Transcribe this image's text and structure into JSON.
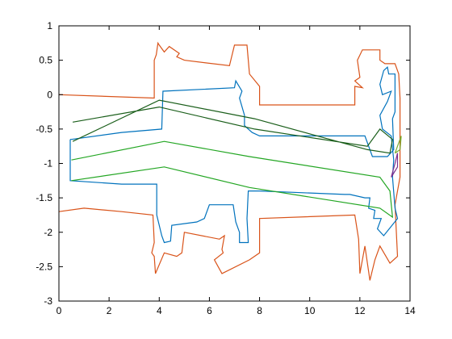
{
  "chart_data": {
    "type": "line",
    "title": "",
    "xlabel": "",
    "ylabel": "",
    "xlim": [
      0,
      14
    ],
    "ylim": [
      -3,
      1
    ],
    "xticks": [
      0,
      2,
      4,
      6,
      8,
      10,
      12,
      14
    ],
    "yticks": [
      1,
      0.5,
      0,
      -0.5,
      -1,
      -1.5,
      -2,
      -2.5,
      -3
    ],
    "xtick_labels": [
      "0",
      "2",
      "4",
      "6",
      "8",
      "10",
      "12",
      "14"
    ],
    "ytick_labels": [
      "1",
      "0.5",
      "0",
      "-0.5",
      "-1",
      "-1.5",
      "-2",
      "-2.5",
      "-3"
    ],
    "grid": false,
    "series": [
      {
        "color": "#d95319",
        "points": [
          [
            0,
            0
          ],
          [
            3.8,
            -0.05
          ],
          [
            3.8,
            0.5
          ],
          [
            3.88,
            0.58
          ],
          [
            3.95,
            0.75
          ],
          [
            4.0,
            0.72
          ],
          [
            4.2,
            0.62
          ],
          [
            4.4,
            0.7
          ],
          [
            4.8,
            0.6
          ],
          [
            4.7,
            0.55
          ],
          [
            5.0,
            0.5
          ],
          [
            6.8,
            0.42
          ],
          [
            7.0,
            0.72
          ],
          [
            7.5,
            0.72
          ],
          [
            7.6,
            0.3
          ],
          [
            8.0,
            0.12
          ],
          [
            8.0,
            -0.15
          ],
          [
            11.8,
            -0.15
          ],
          [
            11.8,
            0.12
          ],
          [
            12.1,
            0.1
          ],
          [
            11.8,
            0.2
          ],
          [
            12.0,
            0.25
          ],
          [
            11.9,
            0.5
          ],
          [
            12.1,
            0.65
          ],
          [
            12.8,
            0.65
          ],
          [
            12.8,
            0.5
          ],
          [
            13.0,
            0.45
          ],
          [
            13.4,
            0.45
          ],
          [
            13.55,
            0.3
          ],
          [
            13.6,
            -0.05
          ],
          [
            13.6,
            -1.2
          ],
          [
            13.4,
            -1.6
          ],
          [
            13.5,
            -2.35
          ],
          [
            13.2,
            -2.45
          ],
          [
            12.8,
            -2.2
          ],
          [
            12.6,
            -2.4
          ],
          [
            12.4,
            -2.7
          ],
          [
            12.2,
            -2.2
          ],
          [
            12.0,
            -2.6
          ],
          [
            11.95,
            -2.1
          ],
          [
            11.8,
            -1.75
          ],
          [
            8.0,
            -1.8
          ],
          [
            8.0,
            -2.3
          ],
          [
            7.6,
            -2.4
          ],
          [
            6.5,
            -2.6
          ],
          [
            6.2,
            -2.4
          ],
          [
            6.55,
            -2.3
          ],
          [
            6.5,
            -2.25
          ],
          [
            6.6,
            -2.05
          ],
          [
            6.4,
            -2.1
          ],
          [
            5.0,
            -2.0
          ],
          [
            4.9,
            -2.3
          ],
          [
            4.7,
            -2.35
          ],
          [
            4.2,
            -2.3
          ],
          [
            3.85,
            -2.6
          ],
          [
            3.8,
            -2.35
          ],
          [
            3.7,
            -2.3
          ],
          [
            3.8,
            -2.15
          ],
          [
            3.75,
            -1.75
          ],
          [
            2.5,
            -1.7
          ],
          [
            1.0,
            -1.65
          ],
          [
            0,
            -1.7
          ]
        ]
      },
      {
        "color": "#0072bd",
        "points": [
          [
            0.45,
            -0.65
          ],
          [
            0.45,
            -1.25
          ],
          [
            2.5,
            -1.3
          ],
          [
            3.9,
            -1.3
          ],
          [
            3.9,
            -1.75
          ],
          [
            4.1,
            -2.05
          ],
          [
            4.2,
            -2.15
          ],
          [
            4.45,
            -2.13
          ],
          [
            4.5,
            -1.9
          ],
          [
            5.5,
            -1.85
          ],
          [
            5.8,
            -1.8
          ],
          [
            6.0,
            -1.6
          ],
          [
            6.95,
            -1.6
          ],
          [
            7.05,
            -1.85
          ],
          [
            7.2,
            -2.0
          ],
          [
            7.2,
            -2.15
          ],
          [
            7.55,
            -2.15
          ],
          [
            7.5,
            -1.8
          ],
          [
            7.55,
            -1.4
          ],
          [
            8.0,
            -1.4
          ],
          [
            11.4,
            -1.45
          ],
          [
            11.6,
            -1.45
          ],
          [
            12.2,
            -1.5
          ],
          [
            12.4,
            -1.5
          ],
          [
            12.35,
            -1.65
          ],
          [
            12.6,
            -1.68
          ],
          [
            12.55,
            -1.8
          ],
          [
            12.85,
            -1.8
          ],
          [
            12.7,
            -1.95
          ],
          [
            12.95,
            -2.05
          ],
          [
            13.5,
            -1.8
          ],
          [
            13.4,
            -1.65
          ],
          [
            13.3,
            -1.2
          ],
          [
            13.35,
            -0.95
          ],
          [
            13.25,
            -0.6
          ],
          [
            12.9,
            -0.5
          ],
          [
            12.8,
            -0.3
          ],
          [
            13.1,
            -0.1
          ],
          [
            13.25,
            0.05
          ],
          [
            12.9,
            0.0
          ],
          [
            12.8,
            0.15
          ],
          [
            12.95,
            0.35
          ],
          [
            13.1,
            0.4
          ],
          [
            13.15,
            0.3
          ],
          [
            13.4,
            0.3
          ],
          [
            13.4,
            -0.25
          ],
          [
            13.3,
            -0.35
          ],
          [
            13.35,
            -0.8
          ],
          [
            13.1,
            -0.9
          ],
          [
            12.5,
            -0.9
          ],
          [
            12.2,
            -0.6
          ],
          [
            8.0,
            -0.6
          ],
          [
            7.7,
            -0.55
          ],
          [
            7.4,
            -0.45
          ],
          [
            7.4,
            -0.3
          ],
          [
            7.2,
            -0.05
          ],
          [
            7.3,
            0.05
          ],
          [
            7.05,
            0.2
          ],
          [
            7.0,
            0.1
          ],
          [
            4.15,
            0.05
          ],
          [
            4.1,
            -0.5
          ],
          [
            2.5,
            -0.55
          ],
          [
            0.5,
            -0.65
          ],
          [
            0.45,
            -0.65
          ]
        ]
      },
      {
        "color": "#1a5e1a",
        "points": [
          [
            0.55,
            -0.4
          ],
          [
            4.0,
            -0.18
          ],
          [
            7.8,
            -0.5
          ],
          [
            12.3,
            -0.75
          ],
          [
            12.8,
            -0.5
          ],
          [
            13.3,
            -0.65
          ],
          [
            13.2,
            -0.85
          ],
          [
            12.3,
            -0.8
          ],
          [
            7.8,
            -0.35
          ],
          [
            4.0,
            -0.08
          ],
          [
            0.55,
            -0.68
          ]
        ]
      },
      {
        "color": "#23a623",
        "points": [
          [
            0.5,
            -1.25
          ],
          [
            4.2,
            -1.05
          ],
          [
            7.6,
            -1.35
          ],
          [
            12.8,
            -1.65
          ],
          [
            13.3,
            -1.78
          ],
          [
            13.2,
            -1.4
          ],
          [
            12.8,
            -1.2
          ],
          [
            7.6,
            -0.9
          ],
          [
            4.2,
            -0.68
          ],
          [
            0.5,
            -0.95
          ]
        ]
      },
      {
        "color": "#7e2f8e",
        "points": [
          [
            13.25,
            -1.2
          ],
          [
            13.5,
            -1.05
          ],
          [
            13.5,
            -0.85
          ],
          [
            13.4,
            -1.0
          ],
          [
            13.25,
            -1.2
          ]
        ]
      },
      {
        "color": "#77ac30",
        "points": [
          [
            13.4,
            -0.85
          ],
          [
            13.65,
            -0.6
          ],
          [
            13.6,
            -0.8
          ],
          [
            13.4,
            -0.85
          ]
        ]
      }
    ]
  }
}
